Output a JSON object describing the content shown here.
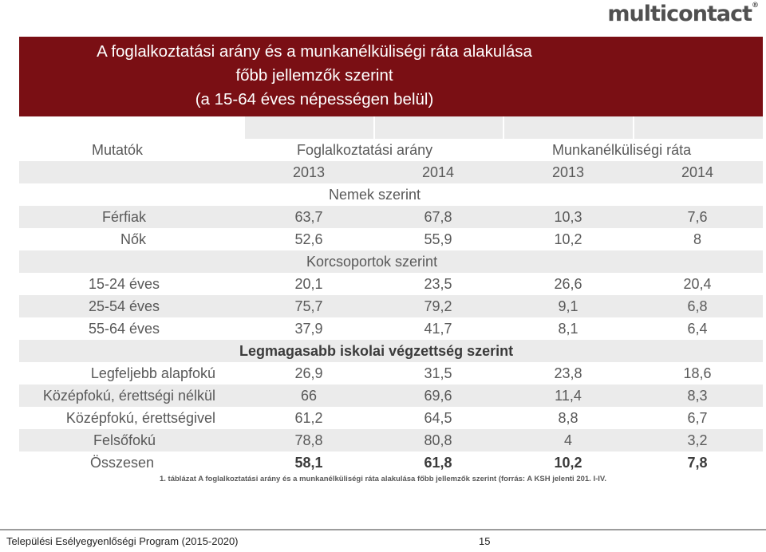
{
  "logo": "multicontact",
  "title": {
    "line1": "A foglalkoztatási arány és a munkanélküliségi ráta alakulása",
    "line2": "főbb jellemzők szerint",
    "line3": "(a 15-64 éves népességen belül)"
  },
  "unit": "(%)",
  "table": {
    "col_label": "Mutatók",
    "group1": "Foglalkoztatási arány",
    "group2": "Munkanélküliségi ráta",
    "years": [
      "2013",
      "2014",
      "2013",
      "2014"
    ],
    "sections": {
      "gender": "Nemek szerint",
      "age": "Korcsoportok szerint",
      "education": "Legmagasabb iskolai végzettség szerint"
    },
    "rows": {
      "ferfiak": {
        "label": "Férfiak",
        "v": [
          "63,7",
          "67,8",
          "10,3",
          "7,6"
        ]
      },
      "nok": {
        "label": "Nők",
        "v": [
          "52,6",
          "55,9",
          "10,2",
          "8"
        ]
      },
      "age1524": {
        "label": "15-24 éves",
        "v": [
          "20,1",
          "23,5",
          "26,6",
          "20,4"
        ]
      },
      "age2554": {
        "label": "25-54 éves",
        "v": [
          "75,7",
          "79,2",
          "9,1",
          "6,8"
        ]
      },
      "age5564": {
        "label": "55-64 éves",
        "v": [
          "37,9",
          "41,7",
          "8,1",
          "6,4"
        ]
      },
      "alapfoku": {
        "label": "Legfeljebb alapfokú",
        "v": [
          "26,9",
          "31,5",
          "23,8",
          "18,6"
        ]
      },
      "kozepfoku_nelkul": {
        "label": "Középfokú, érettségi nélkül",
        "v": [
          "66",
          "69,6",
          "11,4",
          "8,3"
        ]
      },
      "kozepfoku_vel": {
        "label": "Középfokú, érettségivel",
        "v": [
          "61,2",
          "64,5",
          "8,8",
          "6,7"
        ]
      },
      "felsofoku": {
        "label": "Felsőfokú",
        "v": [
          "78,8",
          "80,8",
          "4",
          "3,2"
        ]
      },
      "osszesen": {
        "label": "Összesen",
        "v": [
          "58,1",
          "61,8",
          "10,2",
          "7,8"
        ]
      }
    }
  },
  "caption": "1. táblázat A foglalkoztatási arány és a munkanélküliségi ráta alakulása főbb jellemzők szerint (forrás: A KSH jelenti 201. I-IV.",
  "footer": {
    "program": "Települési Esélyegyenlőségi Program (2015-2020)",
    "page": "15"
  },
  "colors": {
    "banner": "#7a0f14",
    "band": "#ebebeb"
  }
}
